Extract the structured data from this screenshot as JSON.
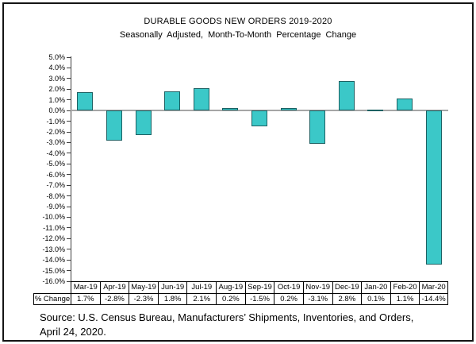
{
  "chart": {
    "title": "DURABLE GOODS NEW ORDERS 2019-2020",
    "subtitle": "Seasonally Adjusted,  Month-To-Month  Percentage Change"
  },
  "chart_data": {
    "type": "bar",
    "categories": [
      "Mar-19",
      "Apr-19",
      "May-19",
      "Jun-19",
      "Jul-19",
      "Aug-19",
      "Sep-19",
      "Oct-19",
      "Nov-19",
      "Dec-19",
      "Jan-20",
      "Feb-20",
      "Mar-20"
    ],
    "values": [
      1.7,
      -2.8,
      -2.3,
      1.8,
      2.1,
      0.2,
      -1.5,
      0.2,
      -3.1,
      2.8,
      0.1,
      1.1,
      -14.4
    ],
    "title": "DURABLE GOODS NEW ORDERS 2019-2020",
    "subtitle": "Seasonally Adjusted,  Month-To-Month  Percentage Change",
    "ylim": [
      -16.0,
      5.0
    ],
    "ytick_step": 1.0,
    "ytick_labels": [
      "5.0%",
      "4.0%",
      "3.0%",
      "2.0%",
      "1.0%",
      "0.0%",
      "-1.0%",
      "-2.0%",
      "-3.0%",
      "-4.0%",
      "-5.0%",
      "-6.0%",
      "-7.0%",
      "-8.0%",
      "-9.0%",
      "-10.0%",
      "-11.0%",
      "-12.0%",
      "-13.0%",
      "-14.0%",
      "-15.0%",
      "-16.0%"
    ],
    "grid": false,
    "legend": "none",
    "bar_color": "#3bc8c8",
    "bar_border_color": "#1d6163",
    "zero_line_color": "#a6a6a6",
    "axis_color": "#3f3f3f"
  },
  "table": {
    "row_label": "% Change",
    "display_values": [
      "1.7%",
      "-2.8%",
      "-2.3%",
      "1.8%",
      "2.1%",
      "0.2%",
      "-1.5%",
      "0.2%",
      "-3.1%",
      "2.8%",
      "0.1%",
      "1.1%",
      "-14.4%"
    ]
  },
  "source": {
    "line1": "Source: U.S. Census Bureau, Manufacturers’ Shipments, Inventories, and Orders,",
    "line2": "April 24, 2020."
  }
}
